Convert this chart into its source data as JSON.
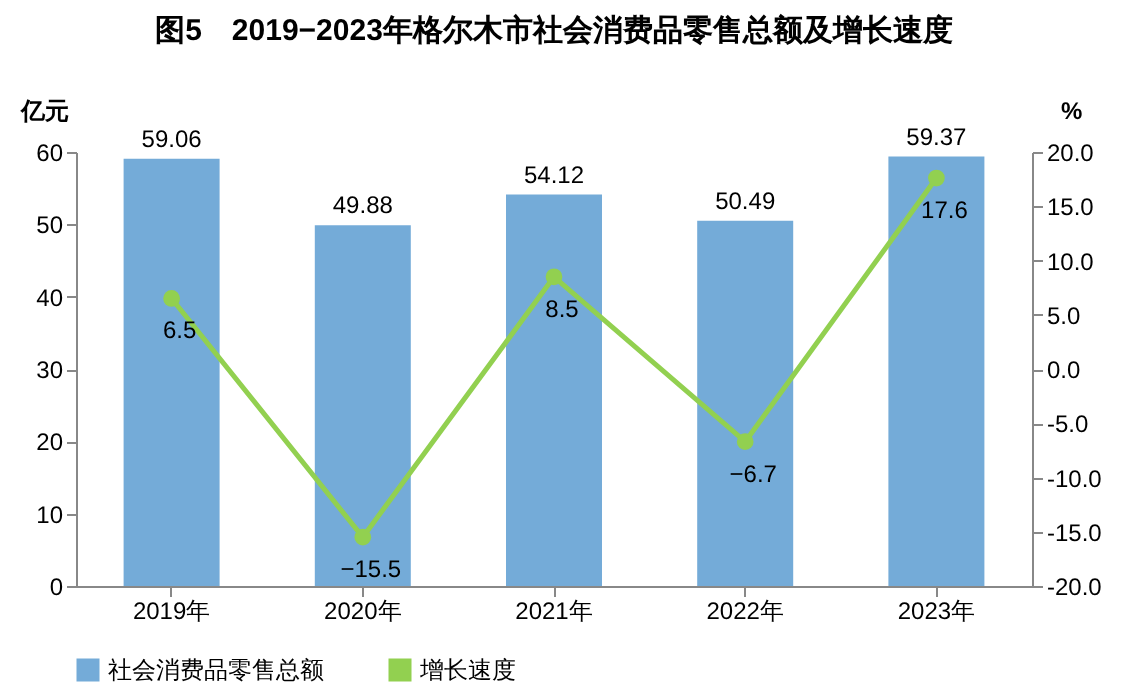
{
  "chart_data": {
    "type": "bar",
    "title": "图5　2019−2023年格尔木市社会消费品零售总额及增长速度",
    "categories": [
      "2019年",
      "2020年",
      "2021年",
      "2022年",
      "2023年"
    ],
    "series": [
      {
        "name": "社会消费品零售总额",
        "color": "#74abd8",
        "values": [
          59.06,
          49.88,
          54.12,
          50.49,
          59.37
        ]
      },
      {
        "name": "增长速度",
        "type": "line",
        "axis": "y2",
        "color": "#92d050",
        "values": [
          6.5,
          -15.5,
          8.5,
          -6.7,
          17.6
        ]
      }
    ],
    "ylabel": "亿元",
    "y2label": "%",
    "ylim": [
      0,
      60
    ],
    "yticks": [
      0,
      10,
      20,
      30,
      40,
      50,
      60
    ],
    "y2lim": [
      -20,
      20
    ],
    "y2ticks": [
      {
        "value": 20,
        "label": "20.0"
      },
      {
        "value": 15,
        "label": "15.0"
      },
      {
        "value": 10,
        "label": "10.0"
      },
      {
        "value": 5,
        "label": "5.0"
      },
      {
        "value": 0,
        "label": "0.0"
      },
      {
        "value": -5,
        "label": "-5.0"
      },
      {
        "value": -10,
        "label": "-10.0"
      },
      {
        "value": -15,
        "label": "-15.0"
      },
      {
        "value": -20,
        "label": "-20.0"
      }
    ],
    "data_labels": true,
    "marker": "circle",
    "legend": "bottom"
  }
}
